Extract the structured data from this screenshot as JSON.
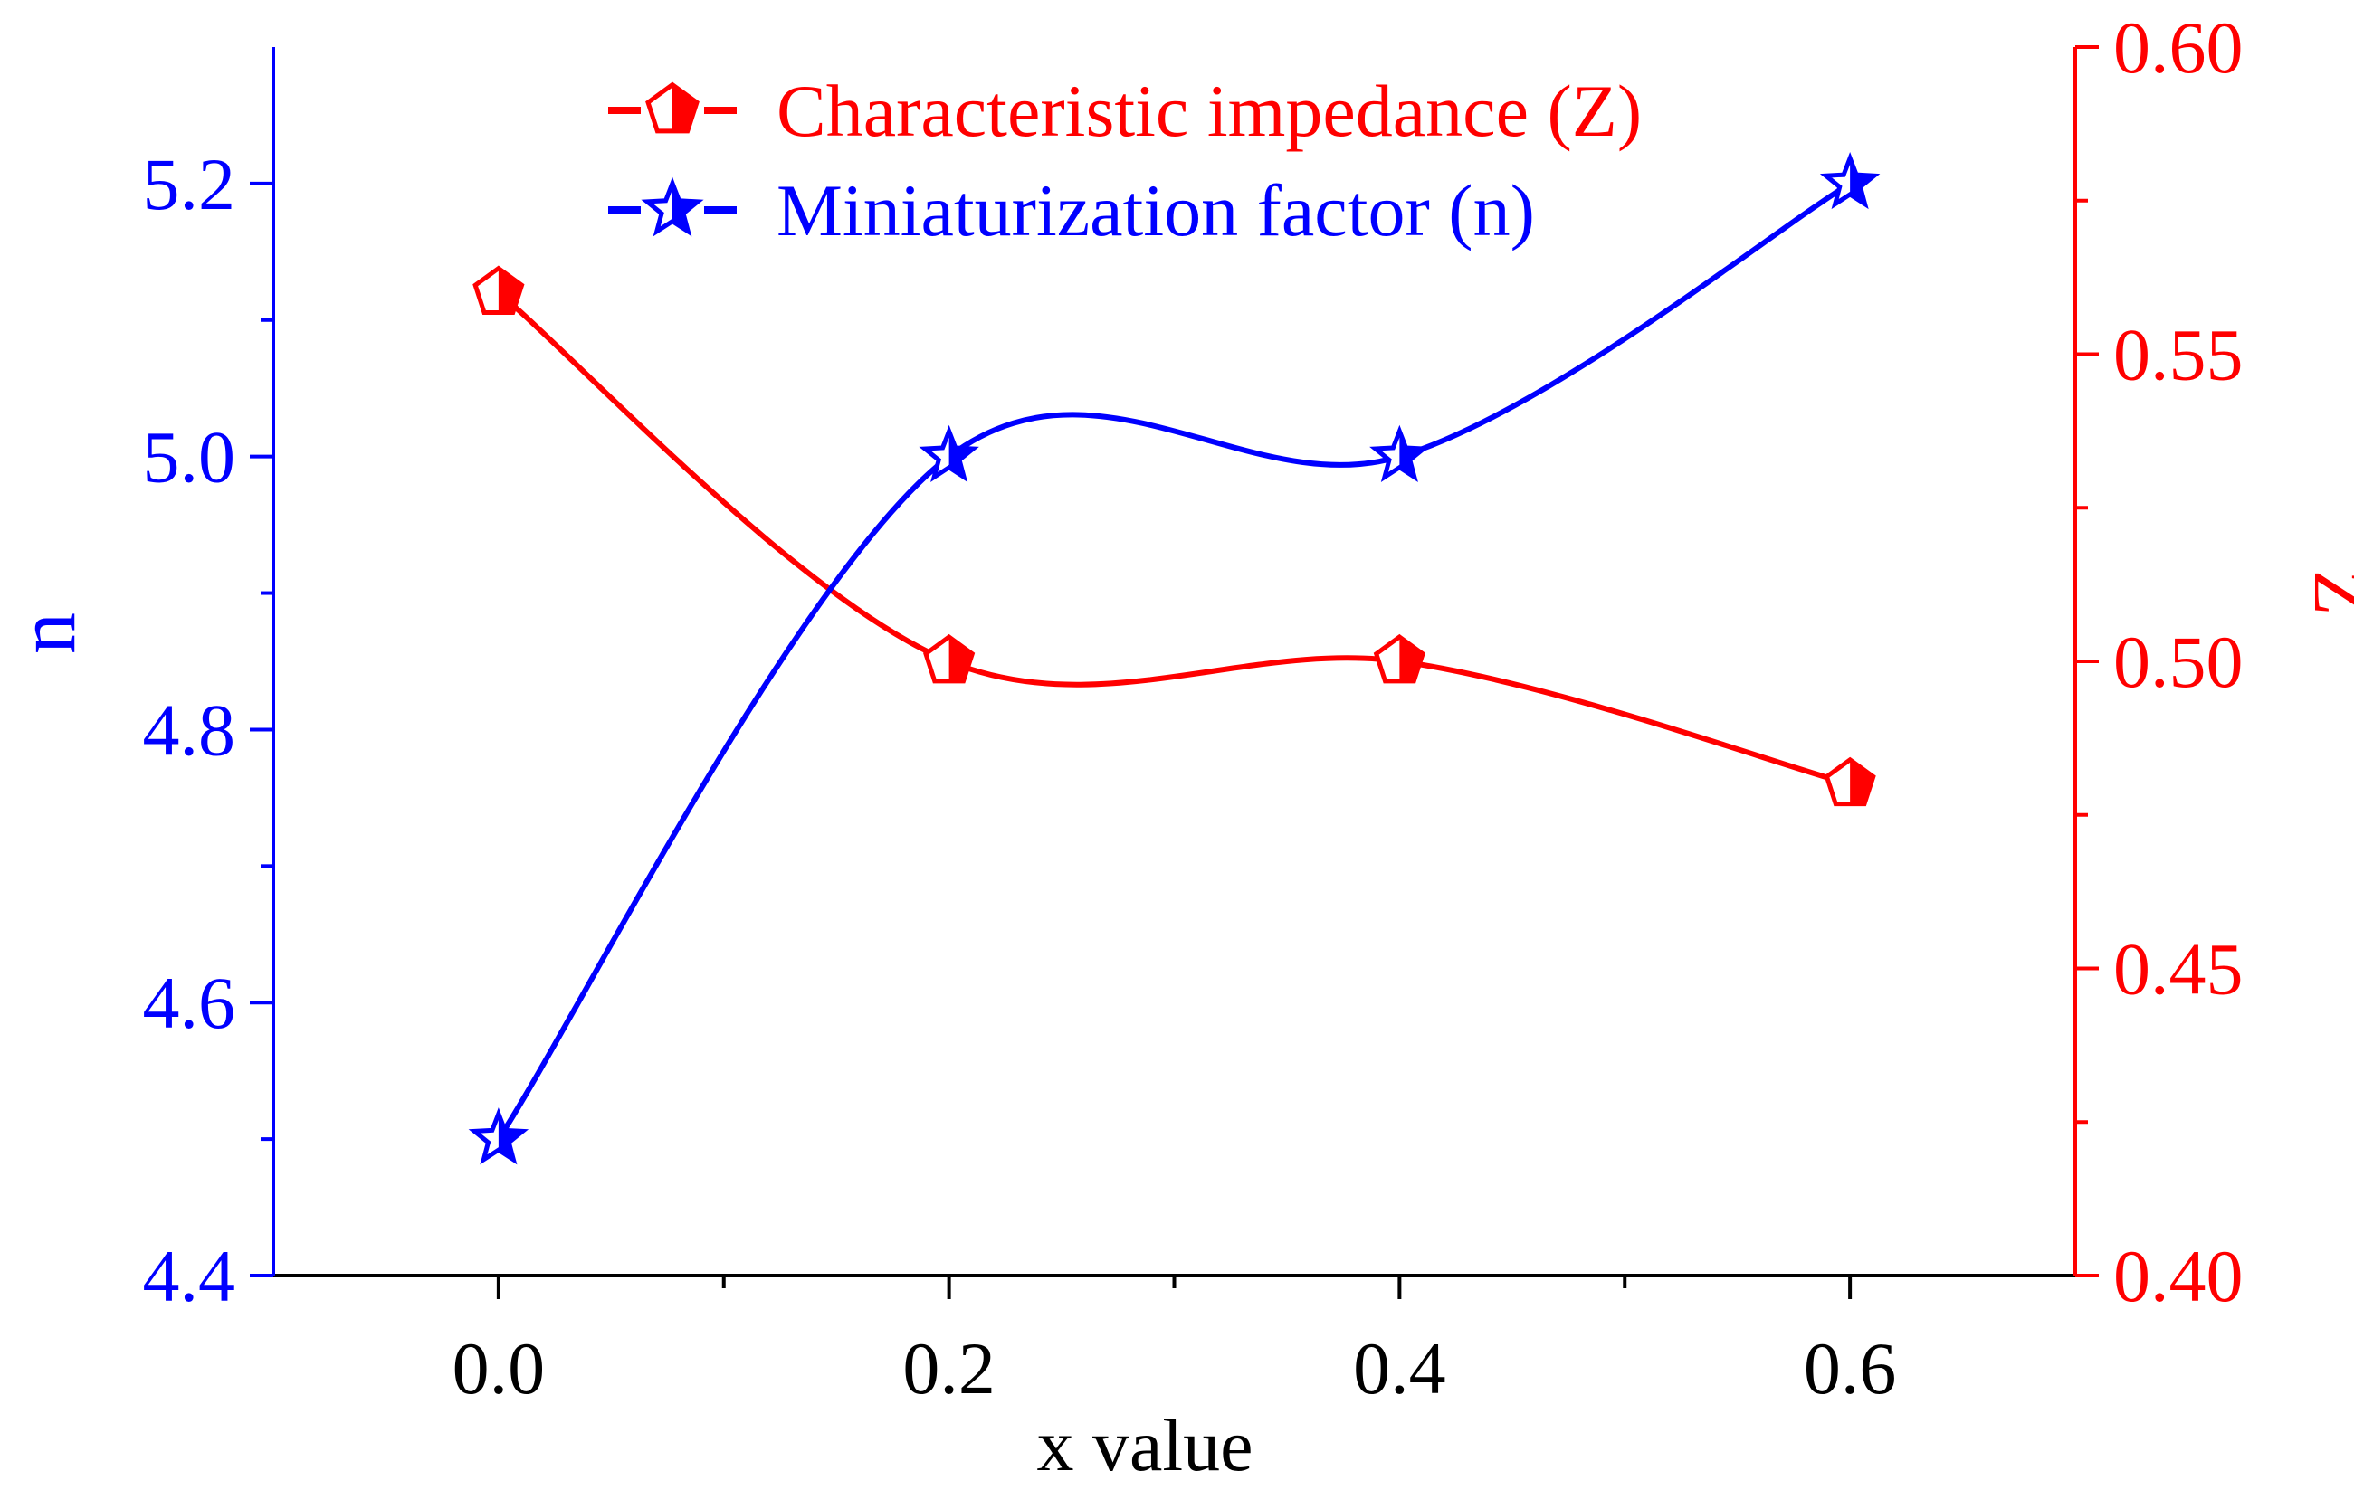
{
  "chart_data": {
    "type": "line",
    "xlabel": "x value",
    "y_left_label": "n",
    "y_right_label": "Z",
    "xlim": [
      -0.1,
      0.7
    ],
    "ylim_left": [
      4.4,
      5.3
    ],
    "ylim_right": [
      0.4,
      0.6
    ],
    "x_ticks": [
      0.0,
      0.2,
      0.4,
      0.6
    ],
    "x_tick_labels": [
      "0.0",
      "0.2",
      "0.4",
      "0.6"
    ],
    "y_left_ticks": [
      4.4,
      4.6,
      4.8,
      5.0,
      5.2
    ],
    "y_left_tick_labels": [
      "4.4",
      "4.6",
      "4.8",
      "5.0",
      "5.2"
    ],
    "y_right_ticks": [
      0.4,
      0.45,
      0.5,
      0.55,
      0.6
    ],
    "y_right_tick_labels": [
      "0.40",
      "0.45",
      "0.50",
      "0.55",
      "0.60"
    ],
    "legend_position": "top-center",
    "series": [
      {
        "name": "Characteristic impedance (Z)",
        "axis": "right",
        "color": "#ff0000",
        "marker": "half-filled-pentagon",
        "x": [
          0.0,
          0.2,
          0.4,
          0.6
        ],
        "values": [
          0.56,
          0.5,
          0.5,
          0.48
        ]
      },
      {
        "name": "Miniaturization factor (n)",
        "axis": "left",
        "color": "#0000ff",
        "marker": "half-filled-star",
        "x": [
          0.0,
          0.2,
          0.4,
          0.6
        ],
        "values": [
          4.5,
          5.0,
          5.0,
          5.2
        ]
      }
    ]
  },
  "colors": {
    "left_axis": "#0000ff",
    "right_axis": "#ff0000",
    "bottom_axis": "#000000"
  }
}
